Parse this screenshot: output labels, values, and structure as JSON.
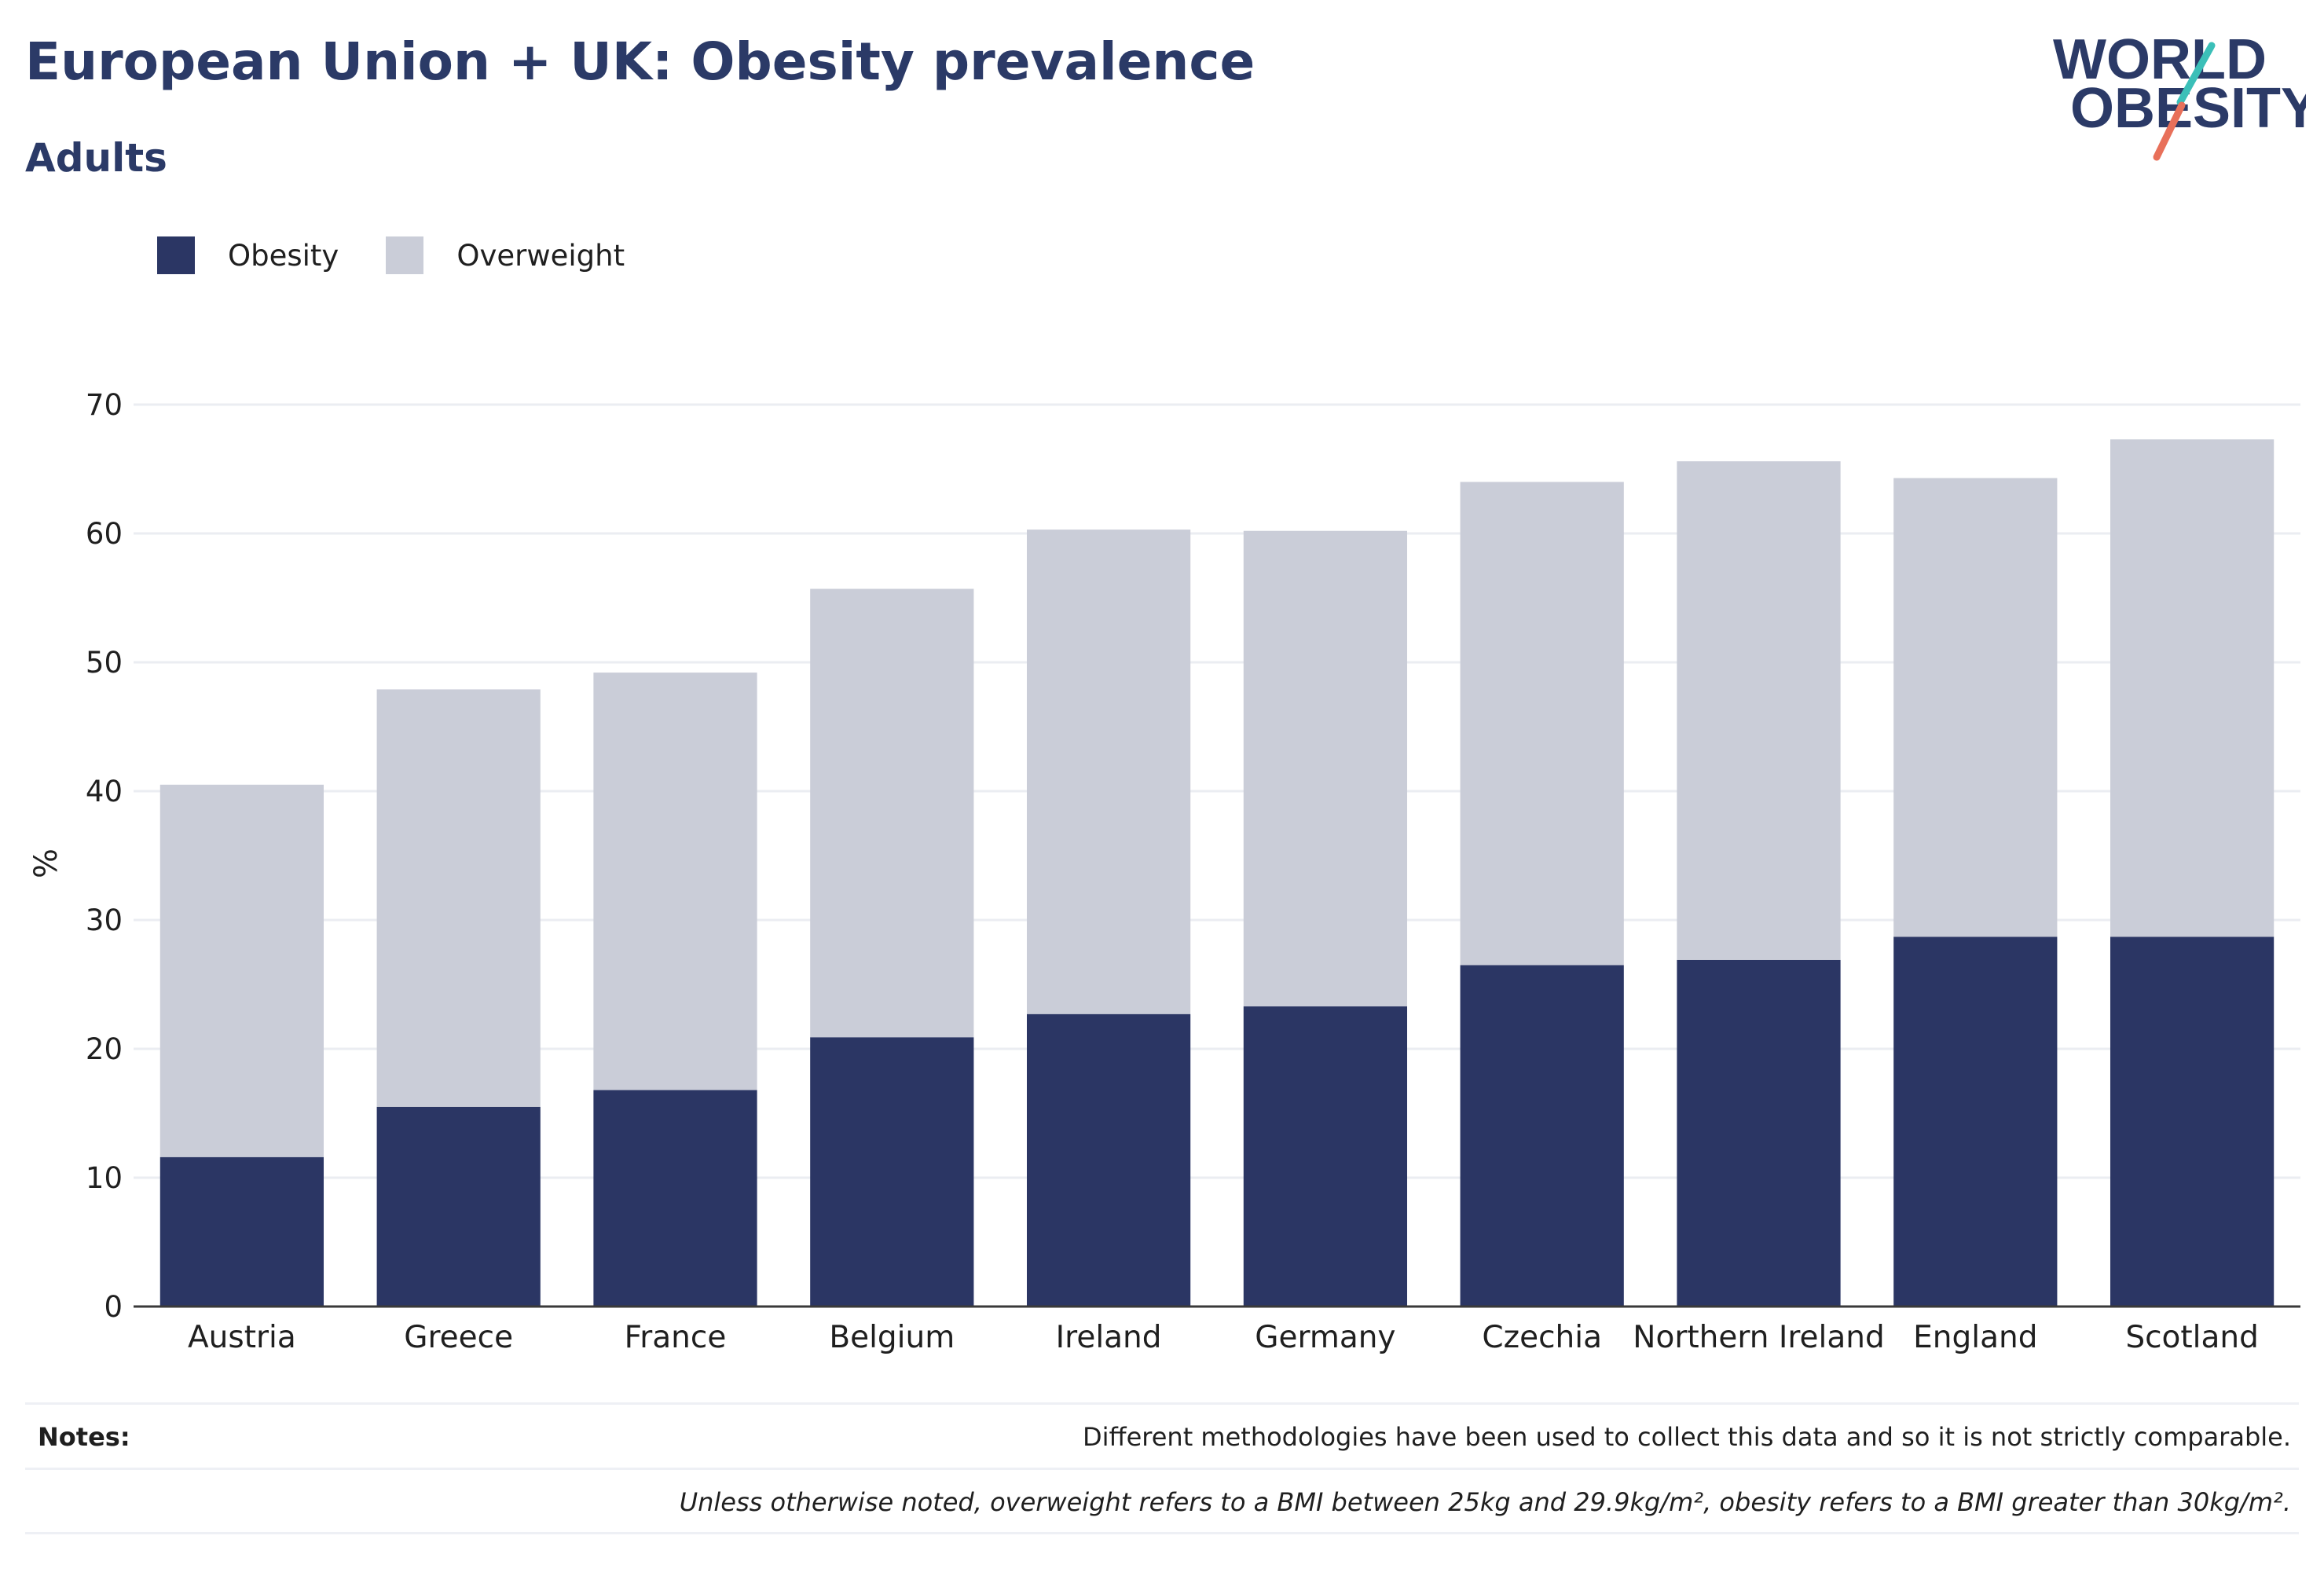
{
  "header": {
    "title": "European Union + UK: Obesity prevalence",
    "subtitle": "Adults"
  },
  "logo": {
    "line1": "WORLD",
    "line2": "OBESITY",
    "colors": {
      "text": "#2b3a67",
      "teal": "#3bbfb8",
      "coral": "#e8705a"
    }
  },
  "legend": [
    {
      "label": "Obesity",
      "color": "#2b3664"
    },
    {
      "label": "Overweight",
      "color": "#cacdd8"
    }
  ],
  "chart_data": {
    "type": "bar",
    "stacked": true,
    "ylabel": "%",
    "ylim": [
      0,
      70
    ],
    "yticks": [
      0,
      10,
      20,
      30,
      40,
      50,
      60,
      70
    ],
    "grid": true,
    "legend_position": "top-left",
    "categories": [
      "Austria",
      "Greece",
      "France",
      "Belgium",
      "Ireland",
      "Germany",
      "Czechia",
      "Northern Ireland",
      "England",
      "Scotland"
    ],
    "series": [
      {
        "name": "Obesity",
        "color": "#2b3664",
        "values": [
          11.6,
          15.5,
          16.8,
          20.9,
          22.7,
          23.3,
          26.5,
          26.9,
          28.7,
          28.7
        ]
      },
      {
        "name": "Overweight",
        "color": "#cacdd8",
        "values": [
          28.9,
          32.4,
          32.4,
          34.8,
          37.6,
          36.9,
          37.5,
          38.7,
          35.6,
          38.6
        ]
      }
    ]
  },
  "notes": {
    "label": "Notes:",
    "line1": "Different methodologies have been used to collect this data and so it is not strictly comparable.",
    "line2": "Unless otherwise noted, overweight refers to a BMI between 25kg and 29.9kg/m², obesity refers to a BMI greater than 30kg/m²."
  }
}
